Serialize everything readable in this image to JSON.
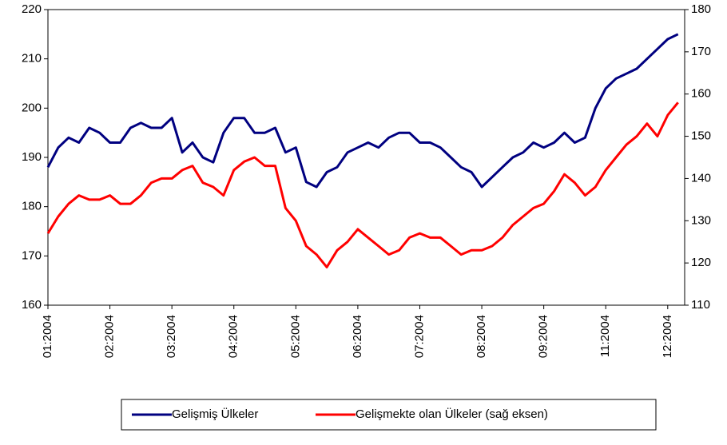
{
  "chart_data": {
    "type": "line",
    "categories": [
      "01:2004",
      null,
      null,
      null,
      null,
      null,
      "02:2004",
      null,
      null,
      null,
      null,
      null,
      "03:2004",
      null,
      null,
      null,
      null,
      null,
      "04:2004",
      null,
      null,
      null,
      null,
      null,
      "05:2004",
      null,
      null,
      null,
      null,
      null,
      "06:2004",
      null,
      null,
      null,
      null,
      null,
      "07:2004",
      null,
      null,
      null,
      null,
      null,
      "08:2004",
      null,
      null,
      null,
      null,
      null,
      "09:2004",
      null,
      null,
      null,
      null,
      null,
      "11:2004",
      null,
      null,
      null,
      null,
      null,
      "12:2004",
      null
    ],
    "series": [
      {
        "name": "Gelişmiş Ülkeler",
        "color": "#000080",
        "axis": "y",
        "values": [
          188,
          192,
          194,
          193,
          196,
          195,
          193,
          193,
          196,
          197,
          196,
          196,
          198,
          191,
          193,
          190,
          189,
          195,
          198,
          198,
          195,
          195,
          196,
          191,
          192,
          185,
          184,
          187,
          188,
          191,
          192,
          193,
          192,
          194,
          195,
          195,
          193,
          193,
          192,
          190,
          188,
          187,
          184,
          186,
          188,
          190,
          191,
          193,
          192,
          193,
          195,
          193,
          194,
          200,
          204,
          206,
          207,
          208,
          210,
          212,
          214,
          215
        ]
      },
      {
        "name": "Gelişmekte olan Ülkeler (sağ eksen)",
        "color": "#ff0000",
        "axis": "y2",
        "values": [
          127,
          131,
          134,
          136,
          135,
          135,
          136,
          134,
          134,
          136,
          139,
          140,
          140,
          142,
          143,
          139,
          138,
          136,
          142,
          144,
          145,
          143,
          143,
          133,
          130,
          124,
          122,
          119,
          123,
          125,
          128,
          126,
          124,
          122,
          123,
          126,
          127,
          126,
          126,
          124,
          122,
          123,
          123,
          124,
          126,
          129,
          131,
          133,
          134,
          137,
          141,
          139,
          136,
          138,
          142,
          145,
          148,
          150,
          153,
          150,
          155,
          158
        ]
      }
    ],
    "ylim": [
      160,
      220
    ],
    "yticks": [
      160,
      170,
      180,
      190,
      200,
      210,
      220
    ],
    "y2lim": [
      110,
      180
    ],
    "y2ticks": [
      110,
      120,
      130,
      140,
      150,
      160,
      170,
      180
    ],
    "grid": false,
    "legend": "bottom"
  }
}
